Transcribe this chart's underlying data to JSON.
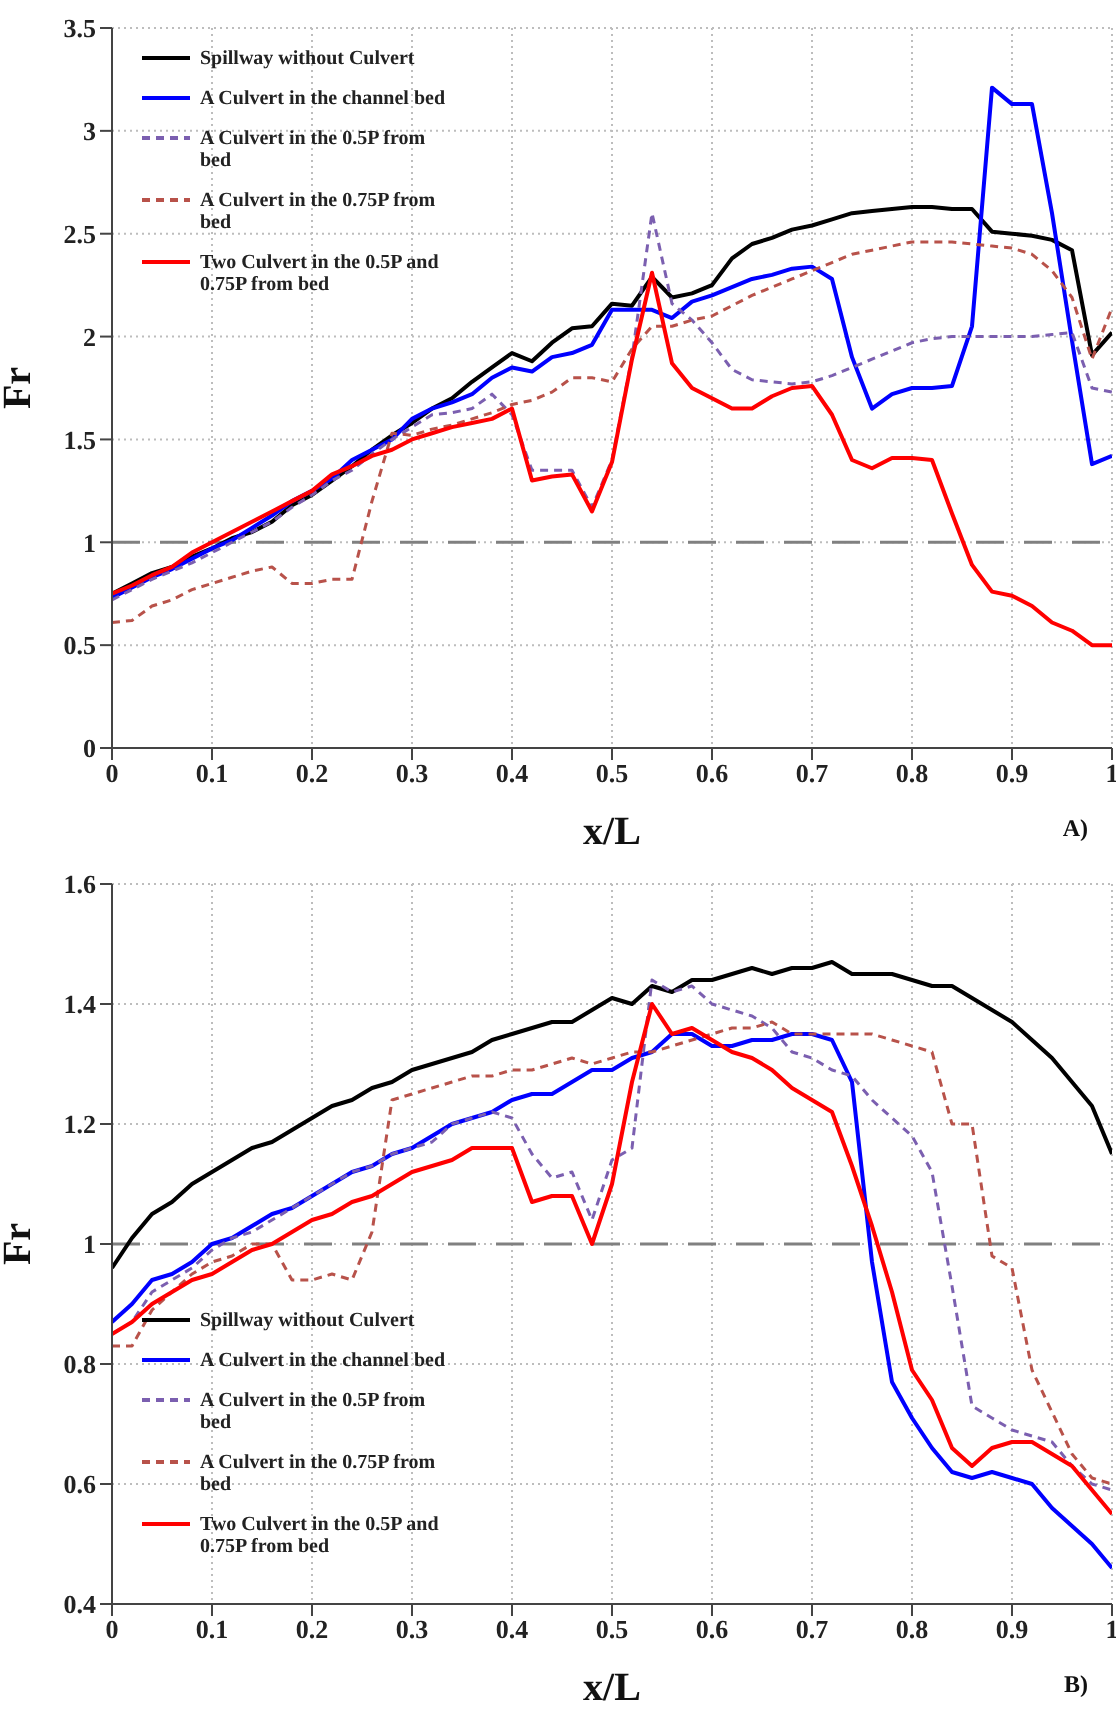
{
  "chart_data": [
    {
      "type": "line",
      "xlabel": "x/L",
      "ylabel": "Fr",
      "annotations": [
        "A)"
      ],
      "xlim": [
        0,
        1
      ],
      "xticks": [
        0,
        0.1,
        0.2,
        0.3,
        0.4,
        0.5,
        0.6,
        0.7,
        0.8,
        0.9,
        1
      ],
      "ylim": [
        0,
        3.5
      ],
      "yticks": [
        0,
        0.5,
        1,
        1.5,
        2,
        2.5,
        3,
        3.5
      ],
      "grid": true,
      "legend": "top left",
      "ref_lines": [
        {
          "axis": "y",
          "value": 1,
          "color": "#808080",
          "line_style": "dashed"
        }
      ],
      "x": [
        0,
        0.02,
        0.04,
        0.06,
        0.08,
        0.1,
        0.12,
        0.14,
        0.16,
        0.18,
        0.2,
        0.22,
        0.24,
        0.26,
        0.28,
        0.3,
        0.32,
        0.34,
        0.36,
        0.38,
        0.4,
        0.42,
        0.44,
        0.46,
        0.48,
        0.5,
        0.52,
        0.54,
        0.56,
        0.58,
        0.6,
        0.62,
        0.64,
        0.66,
        0.68,
        0.7,
        0.72,
        0.74,
        0.76,
        0.78,
        0.8,
        0.82,
        0.84,
        0.86,
        0.88,
        0.9,
        0.92,
        0.94,
        0.96,
        0.98,
        1
      ],
      "series": [
        {
          "name": "Spillway without Culvert",
          "color": "#000000",
          "line_style": "solid",
          "values": [
            0.75,
            0.8,
            0.85,
            0.88,
            0.93,
            0.97,
            1.02,
            1.05,
            1.1,
            1.18,
            1.23,
            1.3,
            1.37,
            1.45,
            1.52,
            1.58,
            1.65,
            1.7,
            1.78,
            1.85,
            1.92,
            1.88,
            1.97,
            2.04,
            2.05,
            2.16,
            2.15,
            2.29,
            2.19,
            2.21,
            2.25,
            2.38,
            2.45,
            2.48,
            2.52,
            2.54,
            2.57,
            2.6,
            2.61,
            2.62,
            2.63,
            2.63,
            2.62,
            2.62,
            2.51,
            2.5,
            2.49,
            2.47,
            2.42,
            1.91,
            2.02
          ]
        },
        {
          "name": "A Culvert in the channel bed",
          "color": "#0000ff",
          "line_style": "solid",
          "values": [
            0.73,
            0.78,
            0.83,
            0.87,
            0.92,
            0.97,
            1.01,
            1.07,
            1.13,
            1.2,
            1.25,
            1.31,
            1.4,
            1.45,
            1.5,
            1.6,
            1.65,
            1.68,
            1.72,
            1.8,
            1.85,
            1.83,
            1.9,
            1.92,
            1.96,
            2.13,
            2.13,
            2.13,
            2.09,
            2.17,
            2.2,
            2.24,
            2.28,
            2.3,
            2.33,
            2.34,
            2.28,
            1.9,
            1.65,
            1.72,
            1.75,
            1.75,
            1.76,
            2.05,
            3.21,
            3.13,
            3.13,
            2.6,
            1.98,
            1.38,
            1.42
          ]
        },
        {
          "name": "A Culvert in the 0.5P from bed",
          "color": "#7b5fb0",
          "line_style": "dashed",
          "values": [
            0.72,
            0.77,
            0.82,
            0.86,
            0.9,
            0.95,
            1.0,
            1.05,
            1.1,
            1.17,
            1.23,
            1.3,
            1.35,
            1.43,
            1.5,
            1.56,
            1.62,
            1.63,
            1.65,
            1.72,
            1.62,
            1.35,
            1.35,
            1.35,
            1.17,
            1.4,
            1.9,
            2.6,
            2.16,
            2.08,
            1.97,
            1.84,
            1.79,
            1.78,
            1.77,
            1.78,
            1.81,
            1.85,
            1.89,
            1.93,
            1.97,
            1.99,
            2.0,
            2.0,
            2.0,
            2.0,
            2.0,
            2.01,
            2.02,
            1.75,
            1.73
          ]
        },
        {
          "name": "A Culvert in the 0.75P from bed",
          "color": "#b8524a",
          "line_style": "dashed",
          "values": [
            0.61,
            0.62,
            0.69,
            0.72,
            0.77,
            0.8,
            0.83,
            0.86,
            0.88,
            0.8,
            0.8,
            0.82,
            0.82,
            1.2,
            1.53,
            1.52,
            1.55,
            1.57,
            1.6,
            1.63,
            1.67,
            1.69,
            1.73,
            1.8,
            1.8,
            1.78,
            1.94,
            2.05,
            2.05,
            2.08,
            2.1,
            2.15,
            2.2,
            2.24,
            2.28,
            2.32,
            2.36,
            2.4,
            2.42,
            2.44,
            2.46,
            2.46,
            2.46,
            2.45,
            2.44,
            2.43,
            2.4,
            2.32,
            2.19,
            1.89,
            2.14
          ]
        },
        {
          "name": "Two Culvert in the 0.5P and 0.75P from bed",
          "color": "#ff0000",
          "line_style": "solid",
          "values": [
            0.75,
            0.79,
            0.84,
            0.88,
            0.95,
            1.0,
            1.05,
            1.1,
            1.15,
            1.2,
            1.25,
            1.33,
            1.37,
            1.42,
            1.45,
            1.5,
            1.53,
            1.56,
            1.58,
            1.6,
            1.65,
            1.3,
            1.32,
            1.33,
            1.15,
            1.39,
            1.89,
            2.31,
            1.87,
            1.75,
            1.7,
            1.65,
            1.65,
            1.71,
            1.75,
            1.76,
            1.62,
            1.4,
            1.36,
            1.41,
            1.41,
            1.4,
            1.14,
            0.89,
            0.76,
            0.74,
            0.69,
            0.61,
            0.57,
            0.5,
            0.5
          ]
        }
      ]
    },
    {
      "type": "line",
      "xlabel": "x/L",
      "ylabel": "Fr",
      "annotations": [
        "B)"
      ],
      "xlim": [
        0,
        1
      ],
      "xticks": [
        0,
        0.1,
        0.2,
        0.3,
        0.4,
        0.5,
        0.6,
        0.7,
        0.8,
        0.9,
        1
      ],
      "ylim": [
        0.4,
        1.6
      ],
      "yticks": [
        0.4,
        0.6,
        0.8,
        1,
        1.2,
        1.4,
        1.6
      ],
      "grid": true,
      "legend": "bottom left",
      "ref_lines": [
        {
          "axis": "y",
          "value": 1,
          "color": "#808080",
          "line_style": "dashed"
        }
      ],
      "x": [
        0,
        0.02,
        0.04,
        0.06,
        0.08,
        0.1,
        0.12,
        0.14,
        0.16,
        0.18,
        0.2,
        0.22,
        0.24,
        0.26,
        0.28,
        0.3,
        0.32,
        0.34,
        0.36,
        0.38,
        0.4,
        0.42,
        0.44,
        0.46,
        0.48,
        0.5,
        0.52,
        0.54,
        0.56,
        0.58,
        0.6,
        0.62,
        0.64,
        0.66,
        0.68,
        0.7,
        0.72,
        0.74,
        0.76,
        0.78,
        0.8,
        0.82,
        0.84,
        0.86,
        0.88,
        0.9,
        0.92,
        0.94,
        0.96,
        0.98,
        1
      ],
      "series": [
        {
          "name": "Spillway without Culvert",
          "color": "#000000",
          "line_style": "solid",
          "values": [
            0.96,
            1.01,
            1.05,
            1.07,
            1.1,
            1.12,
            1.14,
            1.16,
            1.17,
            1.19,
            1.21,
            1.23,
            1.24,
            1.26,
            1.27,
            1.29,
            1.3,
            1.31,
            1.32,
            1.34,
            1.35,
            1.36,
            1.37,
            1.37,
            1.39,
            1.41,
            1.4,
            1.43,
            1.42,
            1.44,
            1.44,
            1.45,
            1.46,
            1.45,
            1.46,
            1.46,
            1.47,
            1.45,
            1.45,
            1.45,
            1.44,
            1.43,
            1.43,
            1.41,
            1.39,
            1.37,
            1.34,
            1.31,
            1.27,
            1.23,
            1.15
          ]
        },
        {
          "name": "A Culvert in the channel bed",
          "color": "#0000ff",
          "line_style": "solid",
          "values": [
            0.87,
            0.9,
            0.94,
            0.95,
            0.97,
            1.0,
            1.01,
            1.03,
            1.05,
            1.06,
            1.08,
            1.1,
            1.12,
            1.13,
            1.15,
            1.16,
            1.18,
            1.2,
            1.21,
            1.22,
            1.24,
            1.25,
            1.25,
            1.27,
            1.29,
            1.29,
            1.31,
            1.32,
            1.35,
            1.35,
            1.33,
            1.33,
            1.34,
            1.34,
            1.35,
            1.35,
            1.34,
            1.27,
            0.97,
            0.77,
            0.71,
            0.66,
            0.62,
            0.61,
            0.62,
            0.61,
            0.6,
            0.56,
            0.53,
            0.5,
            0.46
          ]
        },
        {
          "name": "A Culvert in the 0.5P from bed",
          "color": "#7b5fb0",
          "line_style": "dashed",
          "values": [
            0.85,
            0.87,
            0.92,
            0.94,
            0.96,
            0.99,
            1.01,
            1.02,
            1.04,
            1.06,
            1.08,
            1.1,
            1.12,
            1.13,
            1.15,
            1.16,
            1.17,
            1.2,
            1.21,
            1.22,
            1.21,
            1.15,
            1.11,
            1.12,
            1.04,
            1.14,
            1.16,
            1.44,
            1.42,
            1.43,
            1.4,
            1.39,
            1.38,
            1.36,
            1.32,
            1.31,
            1.29,
            1.28,
            1.24,
            1.21,
            1.18,
            1.12,
            0.93,
            0.73,
            0.71,
            0.69,
            0.68,
            0.67,
            0.63,
            0.6,
            0.59
          ]
        },
        {
          "name": "A Culvert in the 0.75P from bed",
          "color": "#b8524a",
          "line_style": "dashed",
          "values": [
            0.83,
            0.83,
            0.89,
            0.92,
            0.95,
            0.97,
            0.98,
            1.0,
            1.0,
            0.94,
            0.94,
            0.95,
            0.94,
            1.02,
            1.24,
            1.25,
            1.26,
            1.27,
            1.28,
            1.28,
            1.29,
            1.29,
            1.3,
            1.31,
            1.3,
            1.31,
            1.32,
            1.32,
            1.33,
            1.34,
            1.35,
            1.36,
            1.36,
            1.37,
            1.35,
            1.35,
            1.35,
            1.35,
            1.35,
            1.34,
            1.33,
            1.32,
            1.2,
            1.2,
            0.98,
            0.96,
            0.79,
            0.72,
            0.65,
            0.61,
            0.6
          ]
        },
        {
          "name": "Two Culvert in the 0.5P and 0.75P from bed",
          "color": "#ff0000",
          "line_style": "solid",
          "values": [
            0.85,
            0.87,
            0.9,
            0.92,
            0.94,
            0.95,
            0.97,
            0.99,
            1.0,
            1.02,
            1.04,
            1.05,
            1.07,
            1.08,
            1.1,
            1.12,
            1.13,
            1.14,
            1.16,
            1.16,
            1.16,
            1.07,
            1.08,
            1.08,
            1.0,
            1.1,
            1.27,
            1.4,
            1.35,
            1.36,
            1.34,
            1.32,
            1.31,
            1.29,
            1.26,
            1.24,
            1.22,
            1.13,
            1.03,
            0.92,
            0.79,
            0.74,
            0.66,
            0.63,
            0.66,
            0.67,
            0.67,
            0.65,
            0.63,
            0.59,
            0.55
          ]
        }
      ]
    }
  ]
}
